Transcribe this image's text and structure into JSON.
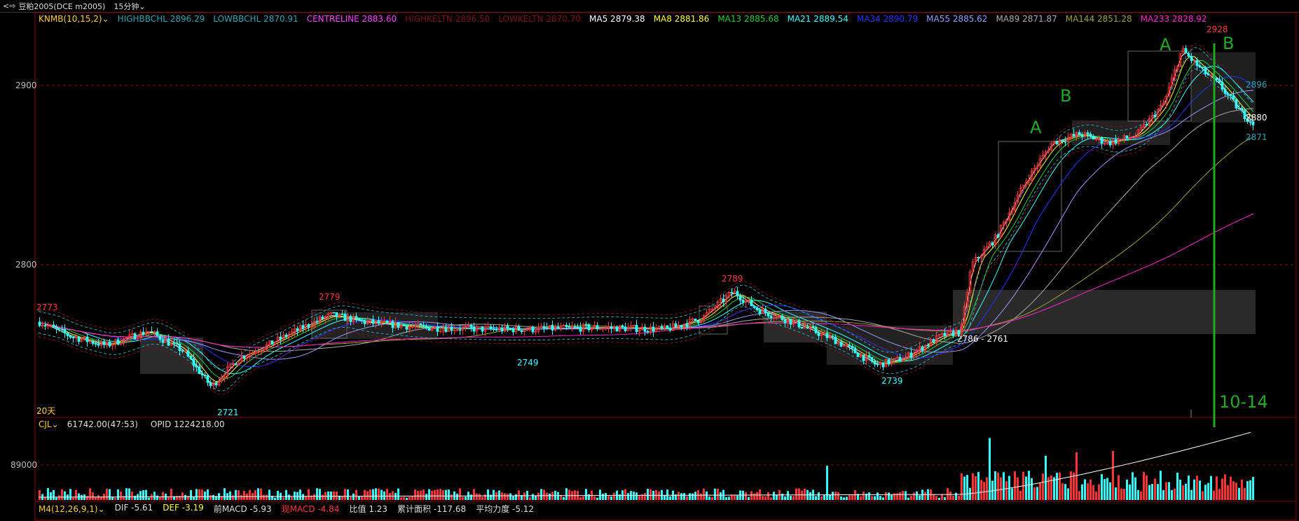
{
  "topbar": {
    "back_glyph": "<⇨",
    "symbol": "豆粕2005(DCE m2005)",
    "period": "15分钟",
    "chevron": "⌄"
  },
  "indicator_legend": {
    "selector": "KNMB(10,15,2)",
    "items": [
      {
        "text": "HIGHBBCHL 2896.29",
        "color": "#2aa3b4"
      },
      {
        "text": "LOWBBCHL 2870.91",
        "color": "#2aa3b4"
      },
      {
        "text": "CENTRELINE 2883.60",
        "color": "#ff40ff"
      },
      {
        "text": "HIGHKELTN 2896.50",
        "color": "#7a1020"
      },
      {
        "text": "LOWKELTN 2870.70",
        "color": "#7a1020"
      },
      {
        "text": "MA5 2879.38",
        "color": "#ffffff"
      },
      {
        "text": "MA8 2881.86",
        "color": "#ffff33"
      },
      {
        "text": "MA13 2885.68",
        "color": "#22cc33"
      },
      {
        "text": "MA21 2889.54",
        "color": "#33ffff"
      },
      {
        "text": "MA34 2890.79",
        "color": "#2233ff"
      },
      {
        "text": "MA55 2885.62",
        "color": "#9999ff"
      },
      {
        "text": "MA89 2871.87",
        "color": "#aaaaaa"
      },
      {
        "text": "MA144 2851.28",
        "color": "#a0a030"
      },
      {
        "text": "MA233 2828.92",
        "color": "#ff22cc"
      }
    ]
  },
  "price_axis": {
    "labels": [
      "2900",
      "2800"
    ]
  },
  "chart_annotations": {
    "highs": [
      "2773",
      "2779",
      "2789",
      "2928"
    ],
    "lows": [
      "2721",
      "2749",
      "2739"
    ],
    "range_label": "2786 - 2761",
    "right_values": [
      "2896",
      "2880",
      "2871"
    ],
    "wave_labels": [
      "A",
      "B",
      "A",
      "B"
    ],
    "date_marker": "10-14",
    "days_label": "20天"
  },
  "volume_panel": {
    "selector": "CJL",
    "volume": "61742.00(47:53)",
    "opid": "OPID 1224218.00",
    "axis_label": "89000"
  },
  "macd_panel": {
    "selector": "M4(12,26,9,1)",
    "items": [
      {
        "text": "DIF -5.61",
        "color": "#dddddd"
      },
      {
        "text": "DEF -3.19",
        "color": "#ffff33"
      },
      {
        "text": "前MACD -5.93",
        "color": "#dddddd"
      },
      {
        "text": "现MACD -4.84",
        "color": "#ff3333"
      },
      {
        "text": "比值 1.23",
        "color": "#dddddd"
      },
      {
        "text": "累计面积 -117.68",
        "color": "#dddddd"
      },
      {
        "text": "平均力度 -5.12",
        "color": "#dddddd"
      }
    ]
  },
  "colors": {
    "up": "#ff3333",
    "down": "#33ffff",
    "grid": "#8b0000",
    "wave": "#22aa22"
  }
}
